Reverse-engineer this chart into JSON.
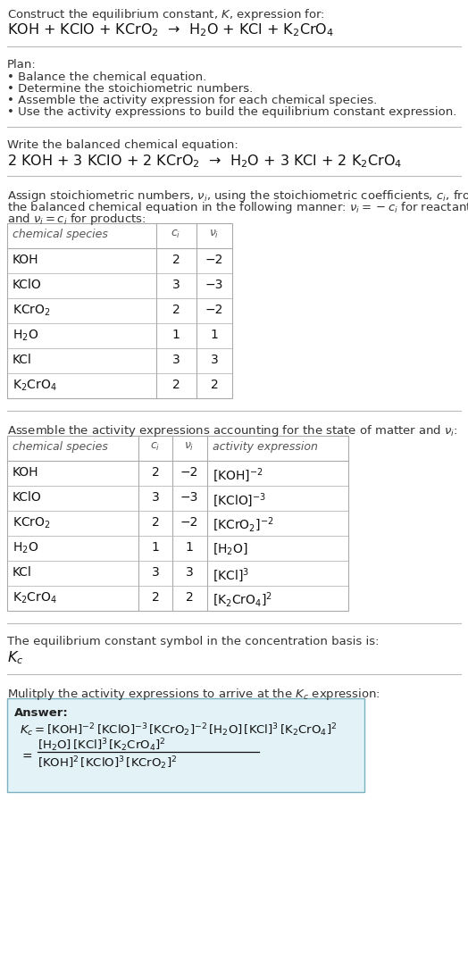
{
  "bg_color": "#ffffff",
  "title_line1": "Construct the equilibrium constant, $K$, expression for:",
  "title_line2": "KOH + KClO + KCrO$_2$  →  H$_2$O + KCl + K$_2$CrO$_4$",
  "plan_header": "Plan:",
  "plan_bullets": [
    "• Balance the chemical equation.",
    "• Determine the stoichiometric numbers.",
    "• Assemble the activity expression for each chemical species.",
    "• Use the activity expressions to build the equilibrium constant expression."
  ],
  "balanced_header": "Write the balanced chemical equation:",
  "balanced_eq": "2 KOH + 3 KClO + 2 KCrO$_2$  →  H$_2$O + 3 KCl + 2 K$_2$CrO$_4$",
  "stoich_line1": "Assign stoichiometric numbers, $\\nu_i$, using the stoichiometric coefficients, $c_i$, from",
  "stoich_line2": "the balanced chemical equation in the following manner: $\\nu_i = -c_i$ for reactants",
  "stoich_line3": "and $\\nu_i = c_i$ for products:",
  "table1_cols": [
    "chemical species",
    "$c_i$",
    "$\\nu_i$"
  ],
  "table1_rows": [
    [
      "KOH",
      "2",
      "−2"
    ],
    [
      "KClO",
      "3",
      "−3"
    ],
    [
      "KCrO$_2$",
      "2",
      "−2"
    ],
    [
      "H$_2$O",
      "1",
      "1"
    ],
    [
      "KCl",
      "3",
      "3"
    ],
    [
      "K$_2$CrO$_4$",
      "2",
      "2"
    ]
  ],
  "activity_header": "Assemble the activity expressions accounting for the state of matter and $\\nu_i$:",
  "table2_cols": [
    "chemical species",
    "$c_i$",
    "$\\nu_i$",
    "activity expression"
  ],
  "table2_rows": [
    [
      "KOH",
      "2",
      "−2",
      "[KOH]$^{-2}$"
    ],
    [
      "KClO",
      "3",
      "−3",
      "[KClO]$^{-3}$"
    ],
    [
      "KCrO$_2$",
      "2",
      "−2",
      "[KCrO$_2$]$^{-2}$"
    ],
    [
      "H$_2$O",
      "1",
      "1",
      "[H$_2$O]"
    ],
    [
      "KCl",
      "3",
      "3",
      "[KCl]$^3$"
    ],
    [
      "K$_2$CrO$_4$",
      "2",
      "2",
      "[K$_2$CrO$_4$]$^2$"
    ]
  ],
  "kc_header": "The equilibrium constant symbol in the concentration basis is:",
  "kc_symbol": "$K_c$",
  "multiply_header": "Mulitply the activity expressions to arrive at the $K_c$ expression:",
  "answer_label": "Answer:",
  "answer_line1": "$K_c = [\\mathrm{KOH}]^{-2}\\,[\\mathrm{KClO}]^{-3}\\,[\\mathrm{KCrO_2}]^{-2}\\,[\\mathrm{H_2O}]\\,[\\mathrm{KCl}]^3\\,[\\mathrm{K_2CrO_4}]^2$",
  "answer_line2_num": "$[\\mathrm{H_2O}]\\,[\\mathrm{KCl}]^3\\,[\\mathrm{K_2CrO_4}]^2$",
  "answer_line3_den": "$[\\mathrm{KOH}]^2\\,[\\mathrm{KClO}]^3\\,[\\mathrm{KCrO_2}]^2$",
  "fs": 9.5,
  "fs_eq": 11.5,
  "fs_table": 10.0
}
